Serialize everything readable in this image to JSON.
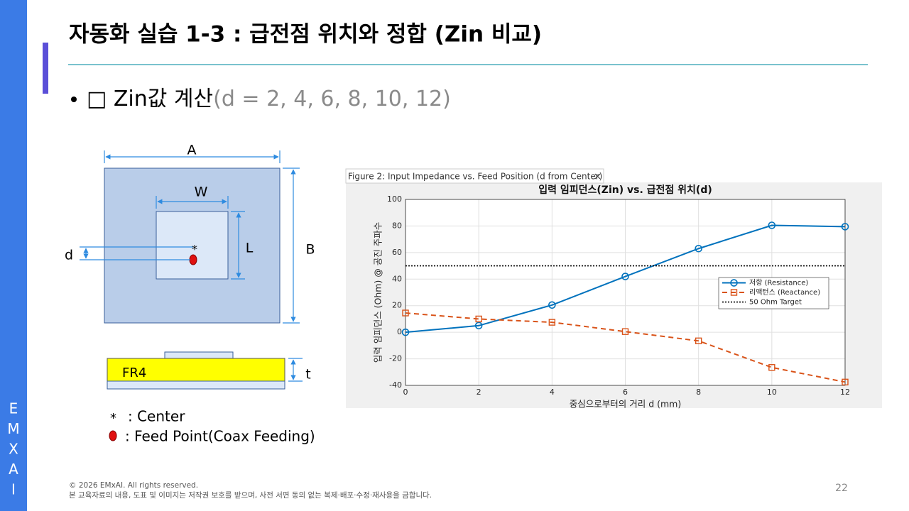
{
  "sidebar": {
    "letters": [
      "E",
      "M",
      "X",
      "A",
      "I"
    ]
  },
  "header": {
    "title": "자동화 실습 1-3 : 급전점 위치와 정합 (Zin 비교)"
  },
  "bullet": {
    "text": "□  Zin값 계산",
    "note": "(d = 2, 4, 6, 8, 10, 12)"
  },
  "diagram": {
    "labels": {
      "A": "A",
      "W": "W",
      "L": "L",
      "B": "B",
      "d": "d",
      "center": "*",
      "substrate": "FR4",
      "t": "t"
    },
    "legend": {
      "center_symbol": "*",
      "center_text": ": Center",
      "feed_text": ": Feed Point(Coax Feeding)"
    }
  },
  "footer": {
    "copyright": "© 2026 EMxAI. All rights reserved.",
    "notice": "본 교육자료의 내용, 도표 및 이미지는 저작권 보호를 받으며, 사전 서면 동의 없는 복제·배포·수정·재사용을 금합니다.",
    "page": "22"
  },
  "chart_data": {
    "type": "line",
    "window_title": "Figure 2: Input Impedance vs. Feed Position (d from Center)",
    "title": "입력 임피던스(Zin) vs. 급전점 위치(d)",
    "xlabel": "중심으로부터의 거리 d (mm)",
    "ylabel": "입력 임피던스 (Ohm) @ 공진 주파수",
    "x": [
      0,
      2,
      4,
      6,
      8,
      10,
      12
    ],
    "series": [
      {
        "name": "저항 (Resistance)",
        "color": "#0072bd",
        "line_style": "solid",
        "marker": "circle",
        "values": [
          0,
          5,
          20.5,
          42,
          63,
          80.5,
          79.5
        ]
      },
      {
        "name": "리액턴스 (Reactance)",
        "color": "#d95319",
        "line_style": "dashed",
        "marker": "square",
        "values": [
          14.5,
          10,
          7.5,
          0.5,
          -6.5,
          -26.5,
          -37.5
        ]
      },
      {
        "name": "50 Ohm Target",
        "color": "#000000",
        "line_style": "dotted",
        "marker": "none",
        "values": [
          50,
          50,
          50,
          50,
          50,
          50,
          50
        ]
      }
    ],
    "xlim": [
      0,
      12
    ],
    "xticks": [
      0,
      2,
      4,
      6,
      8,
      10,
      12
    ],
    "ylim": [
      -40,
      100
    ],
    "yticks": [
      -40,
      -20,
      0,
      20,
      40,
      60,
      80,
      100
    ],
    "grid": true,
    "legend": "east"
  }
}
